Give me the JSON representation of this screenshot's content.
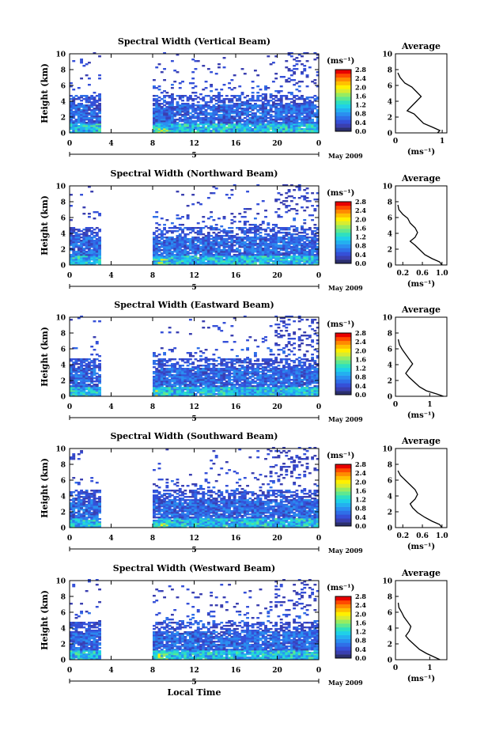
{
  "colors": {
    "scale": [
      "#2b2f6e",
      "#3a3fb0",
      "#3550d8",
      "#2f6fe8",
      "#2a8ff0",
      "#23b0f0",
      "#1fd0e8",
      "#2ee0c0",
      "#5ee890",
      "#98ec60",
      "#d8ec30",
      "#fff000",
      "#ffc000",
      "#ff8a00",
      "#ff4a00",
      "#e80000"
    ],
    "ink": "#000000"
  },
  "chart_data": [
    {
      "type": "heatmap",
      "title": "Spectral Width (Vertical Beam)",
      "ylabel": "Height (km)",
      "unit_label": "(ms⁻¹)",
      "xticks": [
        "0",
        "4",
        "8",
        "12",
        "16",
        "20",
        "0"
      ],
      "yticks": [
        "0",
        "2",
        "4",
        "6",
        "8",
        "10"
      ],
      "xlim": [
        0,
        24
      ],
      "ylim": [
        0,
        10
      ],
      "gap_hours": [
        3,
        8
      ],
      "day_label": "5",
      "month_label": "May 2009",
      "colorbar": {
        "ticks": [
          "2.8",
          "2.4",
          "2.0",
          "1.6",
          "1.2",
          "0.8",
          "0.4",
          "0.0"
        ],
        "min": 0,
        "max": 2.8
      },
      "average": {
        "title": "Average",
        "xlabel": "(ms⁻¹)",
        "xticks": [
          "0",
          "1"
        ],
        "xlim": [
          0,
          1.1
        ],
        "profile": [
          [
            0.9,
            0
          ],
          [
            0.95,
            0.3
          ],
          [
            0.8,
            0.7
          ],
          [
            0.6,
            1.2
          ],
          [
            0.5,
            1.8
          ],
          [
            0.4,
            2.4
          ],
          [
            0.25,
            2.8
          ],
          [
            0.35,
            3.4
          ],
          [
            0.45,
            4
          ],
          [
            0.55,
            4.6
          ],
          [
            0.45,
            5.2
          ],
          [
            0.35,
            5.8
          ],
          [
            0.2,
            6.3
          ],
          [
            0.1,
            7
          ],
          [
            0.05,
            7.6
          ]
        ]
      }
    },
    {
      "type": "heatmap",
      "title": "Spectral Width (Northward Beam)",
      "ylabel": "Height (km)",
      "unit_label": "(ms⁻¹)",
      "xticks": [
        "0",
        "4",
        "8",
        "12",
        "16",
        "20",
        "0"
      ],
      "yticks": [
        "0",
        "2",
        "4",
        "6",
        "8",
        "10"
      ],
      "xlim": [
        0,
        24
      ],
      "ylim": [
        0,
        10
      ],
      "gap_hours": [
        3,
        8
      ],
      "day_label": "5",
      "month_label": "May 2009",
      "colorbar": {
        "ticks": [
          "2.8",
          "2.4",
          "2.0",
          "1.6",
          "1.2",
          "0.8",
          "0.4",
          "0.0"
        ],
        "min": 0,
        "max": 2.8
      },
      "average": {
        "title": "Average",
        "xlabel": "(ms⁻¹)",
        "xticks": [
          "0.2",
          "0.6",
          "1.0"
        ],
        "xlim": [
          0.05,
          1.1
        ],
        "profile": [
          [
            1.0,
            0
          ],
          [
            0.95,
            0.4
          ],
          [
            0.8,
            0.8
          ],
          [
            0.65,
            1.3
          ],
          [
            0.55,
            1.9
          ],
          [
            0.45,
            2.5
          ],
          [
            0.35,
            3
          ],
          [
            0.45,
            3.5
          ],
          [
            0.5,
            4.1
          ],
          [
            0.45,
            4.7
          ],
          [
            0.35,
            5.3
          ],
          [
            0.3,
            5.9
          ],
          [
            0.2,
            6.4
          ],
          [
            0.12,
            7
          ],
          [
            0.1,
            7.6
          ]
        ]
      }
    },
    {
      "type": "heatmap",
      "title": "Spectral Width (Eastward Beam)",
      "ylabel": "Height (km)",
      "unit_label": "(ms⁻¹)",
      "xticks": [
        "0",
        "4",
        "8",
        "12",
        "16",
        "20",
        "0"
      ],
      "yticks": [
        "0",
        "2",
        "4",
        "6",
        "8",
        "10"
      ],
      "xlim": [
        0,
        24
      ],
      "ylim": [
        0,
        10
      ],
      "gap_hours": [
        3,
        8
      ],
      "day_label": "5",
      "month_label": "May 2009",
      "colorbar": {
        "ticks": [
          "2.8",
          "2.4",
          "2.0",
          "1.6",
          "1.2",
          "0.8",
          "0.4",
          "0.0"
        ],
        "min": 0,
        "max": 2.8
      },
      "average": {
        "title": "Average",
        "xlabel": "(ms⁻¹)",
        "xticks": [
          "0",
          "1"
        ],
        "xlim": [
          0,
          1.5
        ],
        "profile": [
          [
            1.4,
            0
          ],
          [
            1.2,
            0.3
          ],
          [
            0.9,
            0.7
          ],
          [
            0.7,
            1.2
          ],
          [
            0.55,
            1.8
          ],
          [
            0.4,
            2.4
          ],
          [
            0.3,
            2.9
          ],
          [
            0.4,
            3.5
          ],
          [
            0.5,
            4.1
          ],
          [
            0.4,
            4.7
          ],
          [
            0.3,
            5.3
          ],
          [
            0.2,
            5.9
          ],
          [
            0.12,
            6.5
          ],
          [
            0.08,
            7.2
          ]
        ]
      }
    },
    {
      "type": "heatmap",
      "title": "Spectral Width (Southward Beam)",
      "ylabel": "Height (km)",
      "unit_label": "(ms⁻¹)",
      "xticks": [
        "0",
        "4",
        "8",
        "12",
        "16",
        "20",
        "0"
      ],
      "yticks": [
        "0",
        "2",
        "4",
        "6",
        "8",
        "10"
      ],
      "xlim": [
        0,
        24
      ],
      "ylim": [
        0,
        10
      ],
      "gap_hours": [
        3,
        8
      ],
      "day_label": "5",
      "month_label": "May 2009",
      "colorbar": {
        "ticks": [
          "2.8",
          "2.4",
          "2.0",
          "1.6",
          "1.2",
          "0.8",
          "0.4",
          "0.0"
        ],
        "min": 0,
        "max": 2.8
      },
      "average": {
        "title": "Average",
        "xlabel": "(ms⁻¹)",
        "xticks": [
          "0.2",
          "0.6",
          "1.0"
        ],
        "xlim": [
          0.05,
          1.1
        ],
        "profile": [
          [
            1.0,
            0
          ],
          [
            0.95,
            0.4
          ],
          [
            0.8,
            0.8
          ],
          [
            0.65,
            1.3
          ],
          [
            0.5,
            1.9
          ],
          [
            0.4,
            2.5
          ],
          [
            0.35,
            3
          ],
          [
            0.45,
            3.6
          ],
          [
            0.5,
            4.2
          ],
          [
            0.45,
            4.8
          ],
          [
            0.35,
            5.4
          ],
          [
            0.25,
            6
          ],
          [
            0.15,
            6.6
          ],
          [
            0.1,
            7.2
          ]
        ]
      }
    },
    {
      "type": "heatmap",
      "title": "Spectral Width (Westward Beam)",
      "ylabel": "Height (km)",
      "unit_label": "(ms⁻¹)",
      "xticks": [
        "0",
        "4",
        "8",
        "12",
        "16",
        "20",
        "0"
      ],
      "yticks": [
        "0",
        "2",
        "4",
        "6",
        "8",
        "10"
      ],
      "xlim": [
        0,
        24
      ],
      "ylim": [
        0,
        10
      ],
      "gap_hours": [
        3,
        8
      ],
      "day_label": "5",
      "month_label": "May 2009",
      "xlabel": "Local Time",
      "colorbar": {
        "ticks": [
          "2.8",
          "2.4",
          "2.0",
          "1.6",
          "1.2",
          "0.8",
          "0.4",
          "0.0"
        ],
        "min": 0,
        "max": 2.8
      },
      "average": {
        "title": "Average",
        "xlabel": "(ms⁻¹)",
        "xticks": [
          "0",
          "1"
        ],
        "xlim": [
          0,
          1.5
        ],
        "profile": [
          [
            1.3,
            0
          ],
          [
            1.1,
            0.4
          ],
          [
            0.9,
            0.8
          ],
          [
            0.7,
            1.3
          ],
          [
            0.55,
            1.9
          ],
          [
            0.4,
            2.5
          ],
          [
            0.3,
            3
          ],
          [
            0.4,
            3.6
          ],
          [
            0.45,
            4.2
          ],
          [
            0.35,
            4.8
          ],
          [
            0.25,
            5.4
          ],
          [
            0.18,
            6
          ],
          [
            0.1,
            6.6
          ],
          [
            0.08,
            7.2
          ]
        ]
      }
    }
  ]
}
